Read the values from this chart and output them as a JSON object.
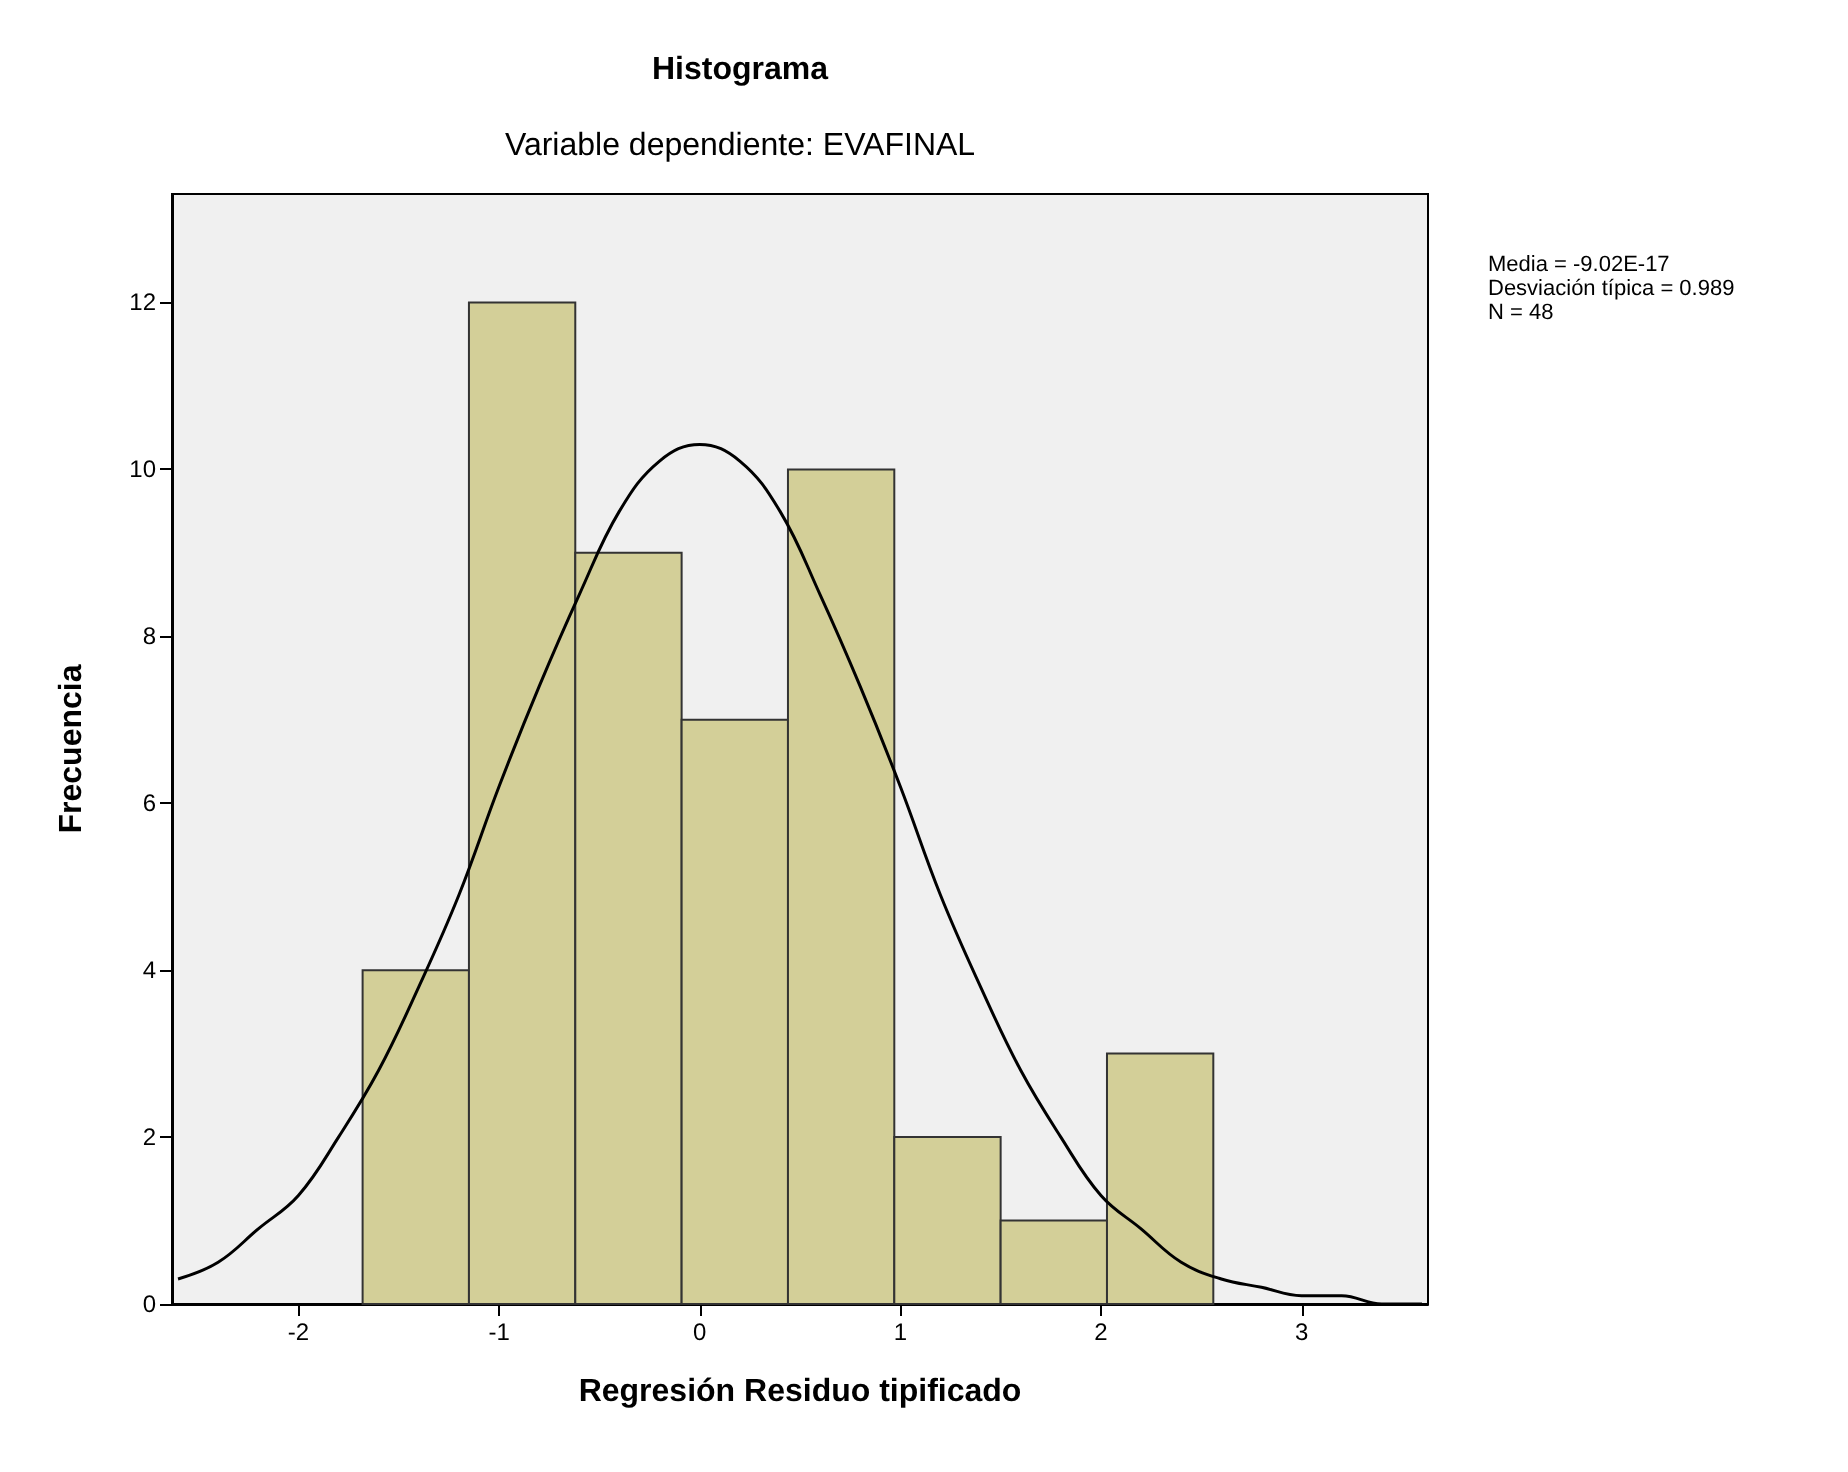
{
  "chart_data": {
    "type": "histogram",
    "title": "Histograma",
    "subtitle": "Variable dependiente: EVAFINAL",
    "xlabel": "Regresión Residuo tipificado",
    "ylabel": "Frecuencia",
    "bins": [
      -1.68,
      -1.15,
      -0.62,
      -0.09,
      0.44,
      0.97,
      1.5,
      2.03,
      2.56
    ],
    "values": [
      4,
      12,
      9,
      7,
      10,
      2,
      1,
      3
    ],
    "color": "#d3cf98",
    "series": [
      {
        "type": "line",
        "color": "#000000",
        "x": [
          -2.6,
          -2.4,
          -2.2,
          -2.0,
          -1.8,
          -1.6,
          -1.4,
          -1.2,
          -1.0,
          -0.8,
          -0.6,
          -0.4,
          -0.2,
          0,
          0.2,
          0.4,
          0.6,
          0.8,
          1.0,
          1.2,
          1.4,
          1.6,
          1.8,
          2.0,
          2.2,
          2.4,
          2.6,
          2.8,
          3.0,
          3.2,
          3.4,
          3.6
        ],
        "values": [
          0.3,
          0.5,
          0.9,
          1.3,
          2.0,
          2.8,
          3.8,
          4.9,
          6.2,
          7.4,
          8.5,
          9.5,
          10.1,
          10.3,
          10.1,
          9.5,
          8.5,
          7.4,
          6.2,
          4.9,
          3.8,
          2.8,
          2.0,
          1.3,
          0.9,
          0.5,
          0.3,
          0.2,
          0.1,
          0.1,
          0.0,
          0.0
        ]
      }
    ],
    "annotations": [
      "Media = -9.02E-17",
      "Desviación típica = 0.989",
      "N = 48"
    ],
    "xlim": [
      -2.63,
      3.63
    ],
    "ylim": [
      0,
      13.3
    ],
    "xticks": [
      -2,
      -1,
      0,
      1,
      2,
      3
    ],
    "yticks": [
      0,
      2,
      4,
      6,
      8,
      10,
      12
    ],
    "grid": false,
    "marker": "none",
    "line_style": "solid"
  }
}
